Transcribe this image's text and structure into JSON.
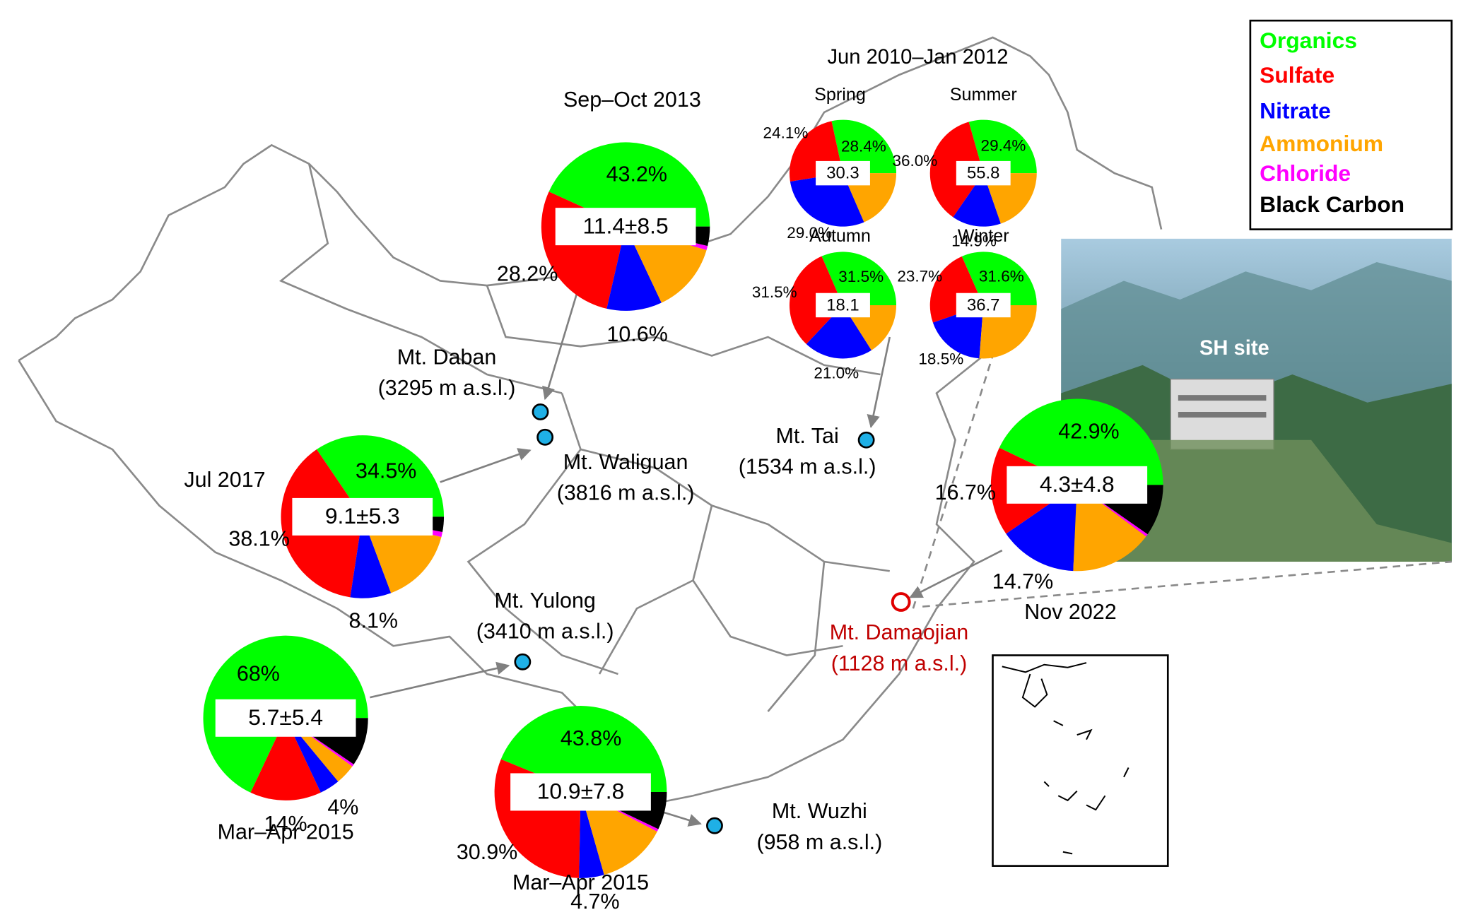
{
  "legend": {
    "names": [
      "Organics",
      "Sulfate",
      "Nitrate",
      "Ammonium",
      "Chloride",
      "Black Carbon"
    ],
    "colors": [
      "#00ff00",
      "#ff0000",
      "#0000ff",
      "#ffa500",
      "#ff00ff",
      "#000000"
    ]
  },
  "group_title": "Jun 2010–Jan 2012",
  "photo_label": "SH site",
  "sites": [
    {
      "name": "Mt. Daban",
      "elevation": "(3295 m a.s.l.)"
    },
    {
      "name": "Mt. Waliguan",
      "elevation": "(3816 m a.s.l.)"
    },
    {
      "name": "Mt. Tai",
      "elevation": "(1534 m a.s.l.)"
    },
    {
      "name": "Mt. Yulong",
      "elevation": "(3410 m a.s.l.)"
    },
    {
      "name": "Mt. Wuzhi",
      "elevation": "(958 m a.s.l.)"
    },
    {
      "name": "Mt. Damaojian",
      "elevation": "(1128 m a.s.l.)"
    }
  ],
  "chart_data": [
    {
      "type": "pie",
      "title": "Sep–Oct 2013",
      "center_label": "11.4±8.5",
      "values": [
        43.2,
        28.2,
        10.6,
        13.5,
        0.8,
        3.7
      ],
      "value_labels": [
        "43.2%",
        "28.2%",
        "10.6%",
        null,
        null,
        null
      ]
    },
    {
      "type": "pie",
      "title": "Jul 2017",
      "center_label": "9.1±5.3",
      "values": [
        34.5,
        38.1,
        8.1,
        15.3,
        1.0,
        3.0
      ],
      "value_labels": [
        "34.5%",
        "38.1%",
        "8.1%",
        null,
        null,
        null
      ]
    },
    {
      "type": "pie",
      "title": "Mar–Apr 2015",
      "center_label": "5.7±5.4",
      "values": [
        68,
        14,
        4,
        4,
        0.5,
        9.5
      ],
      "value_labels": [
        "68%",
        "14%",
        "4%",
        null,
        null,
        null
      ]
    },
    {
      "type": "pie",
      "title": "Mar–Apr 2015",
      "center_label": "10.9±7.8",
      "values": [
        43.8,
        30.9,
        4.7,
        13,
        0.5,
        7.1
      ],
      "value_labels": [
        "43.8%",
        "30.9%",
        "4.7%",
        null,
        null,
        null
      ]
    },
    {
      "type": "pie",
      "title": "Nov 2022",
      "center_label": "4.3±4.8",
      "values": [
        42.9,
        16.7,
        14.7,
        15.5,
        0.5,
        9.7
      ],
      "value_labels": [
        "42.9%",
        "16.7%",
        "14.7%",
        null,
        null,
        null
      ]
    },
    {
      "type": "pie",
      "title": "Spring",
      "center_label": "30.3",
      "values": [
        28.4,
        24.1,
        29.0,
        18.5
      ],
      "value_labels": [
        "28.4%",
        "24.1%",
        "29.0%",
        null
      ]
    },
    {
      "type": "pie",
      "title": "Summer",
      "center_label": "55.8",
      "values": [
        29.4,
        36.0,
        14.9,
        19.7
      ],
      "value_labels": [
        "29.4%",
        "36.0%",
        "14.9%",
        null
      ]
    },
    {
      "type": "pie",
      "title": "Autumn",
      "center_label": "18.1",
      "values": [
        31.5,
        31.5,
        21.0,
        16.0
      ],
      "value_labels": [
        "31.5%",
        "31.5%",
        "21.0%",
        null
      ]
    },
    {
      "type": "pie",
      "title": "Winter",
      "center_label": "36.7",
      "values": [
        31.6,
        23.7,
        18.5,
        26.2
      ],
      "value_labels": [
        "31.6%",
        "23.7%",
        "18.5%",
        null
      ]
    }
  ]
}
